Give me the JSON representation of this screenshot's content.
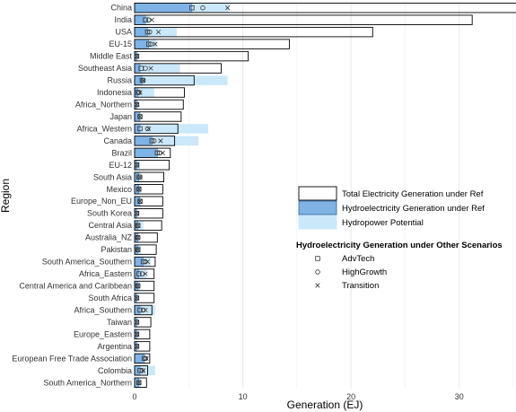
{
  "chart_data": {
    "type": "bar",
    "orientation": "horizontal",
    "xlabel": "Generation (EJ)",
    "ylabel": "Region",
    "xlim": [
      0,
      35
    ],
    "x_ticks": [
      0,
      10,
      20,
      30
    ],
    "grid": "vertical",
    "legend_position": "right",
    "colors": {
      "total": "#ffffff",
      "total_border": "#000000",
      "hydro": "#7fb3e6",
      "hydro_border": "#3f6fa0",
      "potential": "#cbe8fa",
      "grid": "#ebebeb",
      "marker": "#333333"
    },
    "categories": [
      "China",
      "India",
      "USA",
      "EU-15",
      "Middle East",
      "Southeast Asia",
      "Russia",
      "Indonesia",
      "Africa_Northern",
      "Japan",
      "Africa_Western",
      "Canada",
      "Brazil",
      "EU-12",
      "South Asia",
      "Mexico",
      "Europe_Non_EU",
      "South Korea",
      "Central Asia",
      "Australia_NZ",
      "Pakistan",
      "South America_Southern",
      "Africa_Eastern",
      "Central America and Caribbean",
      "South Africa",
      "Africa_Southern",
      "Taiwan",
      "Europe_Eastern",
      "Argentina",
      "European Free Trade Association",
      "Colombia",
      "South America_Northern"
    ],
    "series": [
      {
        "name": "Total Electricity Generation under Ref",
        "values": [
          35.5,
          31.2,
          22.0,
          14.3,
          10.5,
          8.0,
          5.5,
          4.6,
          4.5,
          4.3,
          4.0,
          3.7,
          3.3,
          3.2,
          2.7,
          2.6,
          2.6,
          2.6,
          2.5,
          2.1,
          2.0,
          1.9,
          1.8,
          1.8,
          1.8,
          1.6,
          1.5,
          1.4,
          1.4,
          1.4,
          1.2,
          1.1
        ]
      },
      {
        "name": "Hydroelectricity Generation under Ref",
        "values": [
          5.3,
          1.0,
          1.2,
          1.3,
          0.2,
          0.5,
          0.7,
          0.3,
          0.2,
          0.5,
          0.5,
          1.6,
          2.1,
          0.2,
          0.4,
          0.4,
          0.5,
          0.2,
          0.3,
          0.3,
          0.3,
          0.8,
          0.4,
          0.3,
          0.2,
          0.5,
          0.2,
          0.2,
          0.2,
          0.9,
          0.5,
          0.4
        ]
      },
      {
        "name": "Hydropower Potential",
        "values": [
          8.7,
          1.4,
          3.9,
          2.0,
          0.3,
          4.2,
          8.6,
          1.8,
          0.3,
          0.4,
          6.8,
          5.9,
          2.2,
          0.5,
          0.6,
          0.6,
          0.5,
          0.3,
          0.8,
          0.4,
          0.6,
          1.5,
          1.1,
          0.5,
          0.3,
          1.9,
          0.3,
          0.4,
          0.3,
          1.0,
          1.9,
          0.6
        ]
      }
    ],
    "other_scenarios": {
      "title": "Hydroelectricity Generation under Other Scenarios",
      "series": [
        {
          "name": "AdvTech",
          "marker": "square",
          "values": [
            5.3,
            1.0,
            1.2,
            1.3,
            0.2,
            0.6,
            0.7,
            0.3,
            0.2,
            0.5,
            0.5,
            1.6,
            2.1,
            0.2,
            0.4,
            0.4,
            0.5,
            0.2,
            0.3,
            0.3,
            0.3,
            0.8,
            0.4,
            0.3,
            0.2,
            0.5,
            0.2,
            0.2,
            0.2,
            0.9,
            0.5,
            0.4
          ]
        },
        {
          "name": "HighGrowth",
          "marker": "circle",
          "values": [
            6.3,
            1.3,
            1.4,
            1.5,
            0.2,
            1.0,
            0.8,
            0.4,
            0.2,
            0.5,
            1.2,
            1.8,
            2.3,
            0.2,
            0.5,
            0.4,
            0.5,
            0.2,
            0.3,
            0.3,
            0.3,
            1.0,
            0.7,
            0.3,
            0.2,
            0.8,
            0.2,
            0.2,
            0.2,
            1.0,
            0.7,
            0.4
          ]
        },
        {
          "name": "Transition",
          "marker": "x",
          "values": [
            8.6,
            1.6,
            2.2,
            1.9,
            0.2,
            1.5,
            0.8,
            0.5,
            0.2,
            0.5,
            1.3,
            2.4,
            2.6,
            0.2,
            0.5,
            0.4,
            0.5,
            0.2,
            0.3,
            0.3,
            0.3,
            1.2,
            1.0,
            0.3,
            0.2,
            1.0,
            0.2,
            0.2,
            0.2,
            1.1,
            0.8,
            0.4
          ]
        }
      ]
    }
  }
}
